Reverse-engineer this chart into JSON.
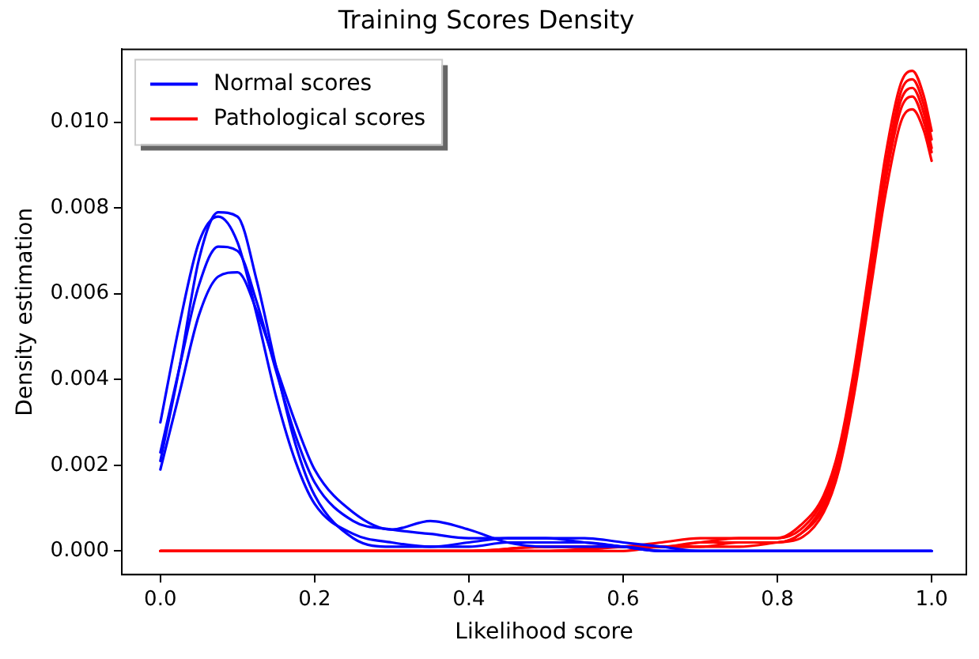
{
  "chart_data": {
    "type": "line",
    "title": "Training Scores Density",
    "xlabel": "Likelihood score",
    "ylabel": "Density estimation",
    "xlim": [
      -0.05,
      1.045
    ],
    "ylim": [
      -0.00055,
      0.0117
    ],
    "xticks": [
      {
        "value": 0,
        "label": "0.0"
      },
      {
        "value": 0.2,
        "label": "0.2"
      },
      {
        "value": 0.4,
        "label": "0.4"
      },
      {
        "value": 0.6,
        "label": "0.6"
      },
      {
        "value": 0.8,
        "label": "0.8"
      },
      {
        "value": 1,
        "label": "1.0"
      }
    ],
    "yticks": [
      {
        "value": 0,
        "label": "0.000"
      },
      {
        "value": 0.002,
        "label": "0.002"
      },
      {
        "value": 0.004,
        "label": "0.004"
      },
      {
        "value": 0.006,
        "label": "0.006"
      },
      {
        "value": 0.008,
        "label": "0.008"
      },
      {
        "value": 0.01,
        "label": "0.010"
      }
    ],
    "grid": false,
    "legend": "top left",
    "marker": "none",
    "line_style": "solid",
    "series": [
      {
        "name": "Normal scores",
        "color": "#0000ff",
        "x": [
          0,
          0.025,
          0.05,
          0.075,
          0.1,
          0.125,
          0.15,
          0.175,
          0.2,
          0.25,
          0.3,
          0.35,
          0.4,
          0.45,
          0.5,
          0.55,
          0.6,
          0.65,
          0.7,
          0.8,
          0.9,
          1.0
        ],
        "values": [
          0.0021,
          0.0043,
          0.0068,
          0.0079,
          0.0078,
          0.0063,
          0.0043,
          0.0025,
          0.0013,
          0.0003,
          0.0001,
          0.0001,
          0.0002,
          0.0003,
          0.0003,
          0.0003,
          0.0002,
          0.0001,
          0,
          0,
          0,
          0
        ]
      },
      {
        "color": "#0000ff",
        "x": [
          0,
          0.025,
          0.05,
          0.075,
          0.1,
          0.125,
          0.15,
          0.175,
          0.2,
          0.25,
          0.3,
          0.35,
          0.4,
          0.45,
          0.5,
          0.55,
          0.6,
          0.65,
          0.7,
          0.8,
          0.9,
          1.0
        ],
        "values": [
          0.003,
          0.0053,
          0.0072,
          0.0078,
          0.0072,
          0.0055,
          0.0036,
          0.0021,
          0.0011,
          0.0004,
          0.0002,
          0.0001,
          0.0001,
          0.0002,
          0.0002,
          0.0002,
          0.0001,
          0,
          0,
          0,
          0,
          0
        ]
      },
      {
        "color": "#0000ff",
        "x": [
          0,
          0.025,
          0.05,
          0.075,
          0.1,
          0.125,
          0.15,
          0.175,
          0.2,
          0.25,
          0.3,
          0.35,
          0.4,
          0.45,
          0.5,
          0.55,
          0.6,
          0.65,
          0.7,
          0.8,
          0.9,
          1.0
        ],
        "values": [
          0.0023,
          0.0043,
          0.0062,
          0.0071,
          0.007,
          0.0058,
          0.0042,
          0.0027,
          0.0016,
          0.0007,
          0.0005,
          0.0004,
          0.0003,
          0.0003,
          0.0003,
          0.0002,
          0.0001,
          0,
          0,
          0,
          0,
          0
        ]
      },
      {
        "color": "#0000ff",
        "x": [
          0,
          0.025,
          0.05,
          0.075,
          0.1,
          0.125,
          0.15,
          0.175,
          0.2,
          0.25,
          0.3,
          0.35,
          0.4,
          0.45,
          0.5,
          0.55,
          0.6,
          0.65,
          0.7,
          0.8,
          0.9,
          1.0
        ],
        "values": [
          0.0019,
          0.0037,
          0.0055,
          0.0064,
          0.0065,
          0.0056,
          0.0043,
          0.003,
          0.0019,
          0.0009,
          0.0005,
          0.0007,
          0.0005,
          0.0002,
          0.0001,
          0.0001,
          0.0001,
          0,
          0,
          0,
          0,
          0
        ]
      },
      {
        "name": "Pathological scores",
        "color": "#ff0000",
        "x": [
          0,
          0.2,
          0.4,
          0.5,
          0.6,
          0.65,
          0.7,
          0.75,
          0.8,
          0.83,
          0.86,
          0.88,
          0.9,
          0.92,
          0.94,
          0.96,
          0.975,
          0.99,
          1.0
        ],
        "values": [
          0,
          0,
          0,
          0,
          0.0001,
          0.0002,
          0.0003,
          0.0003,
          0.0003,
          0.0006,
          0.0013,
          0.0024,
          0.0043,
          0.0067,
          0.0092,
          0.0109,
          0.0112,
          0.0106,
          0.0098
        ]
      },
      {
        "color": "#ff0000",
        "x": [
          0,
          0.2,
          0.4,
          0.5,
          0.6,
          0.65,
          0.7,
          0.75,
          0.8,
          0.83,
          0.86,
          0.88,
          0.9,
          0.92,
          0.94,
          0.96,
          0.975,
          0.99,
          1.0
        ],
        "values": [
          0,
          0,
          0,
          0,
          0.0001,
          0.0001,
          0.0002,
          0.0003,
          0.0003,
          0.0005,
          0.0012,
          0.0022,
          0.0041,
          0.0065,
          0.0089,
          0.0107,
          0.011,
          0.0104,
          0.0096
        ]
      },
      {
        "color": "#ff0000",
        "x": [
          0,
          0.2,
          0.4,
          0.5,
          0.6,
          0.65,
          0.7,
          0.75,
          0.8,
          0.83,
          0.86,
          0.88,
          0.9,
          0.92,
          0.94,
          0.96,
          0.975,
          0.99,
          1.0
        ],
        "values": [
          0,
          0,
          0,
          0.0001,
          0.0001,
          0.0001,
          0.0002,
          0.0002,
          0.0002,
          0.0004,
          0.0011,
          0.0021,
          0.004,
          0.0064,
          0.0088,
          0.0105,
          0.0108,
          0.0102,
          0.0094
        ]
      },
      {
        "color": "#ff0000",
        "x": [
          0,
          0.2,
          0.4,
          0.5,
          0.6,
          0.65,
          0.7,
          0.75,
          0.8,
          0.83,
          0.86,
          0.88,
          0.9,
          0.92,
          0.94,
          0.96,
          0.975,
          0.99,
          1.0
        ],
        "values": [
          0,
          0,
          0,
          0.0001,
          0.0001,
          0.0001,
          0.0001,
          0.0002,
          0.0002,
          0.0004,
          0.001,
          0.002,
          0.0039,
          0.0062,
          0.0086,
          0.0103,
          0.0106,
          0.01,
          0.0093
        ]
      },
      {
        "color": "#ff0000",
        "x": [
          0,
          0.2,
          0.4,
          0.5,
          0.6,
          0.65,
          0.7,
          0.75,
          0.8,
          0.83,
          0.86,
          0.88,
          0.9,
          0.92,
          0.94,
          0.96,
          0.975,
          0.99,
          1.0
        ],
        "values": [
          0,
          0,
          0,
          0,
          0,
          0.0001,
          0.0001,
          0.0001,
          0.0002,
          0.0003,
          0.0009,
          0.0019,
          0.0037,
          0.006,
          0.0083,
          0.01,
          0.0103,
          0.0098,
          0.0091
        ]
      }
    ]
  }
}
